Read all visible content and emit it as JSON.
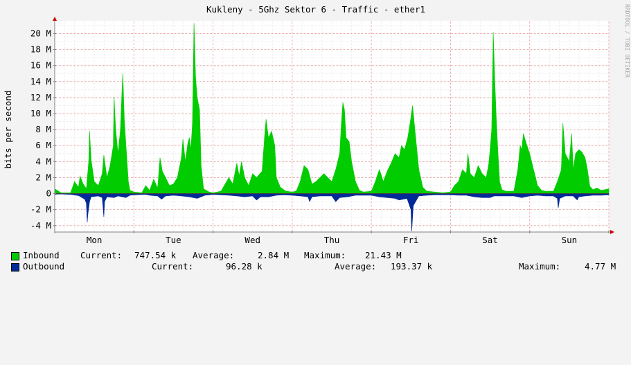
{
  "chart_data": {
    "type": "area",
    "title": "Kukleny - 5Ghz Sektor 6 - Traffic - ether1",
    "ylabel": "bits per second",
    "xlabel": "",
    "watermark": "RRDTOOL / TOBI OETIKER",
    "ylim": [
      -4800000,
      21600000
    ],
    "y_ticks": [
      {
        "value": 20000000,
        "label": "20 M"
      },
      {
        "value": 18000000,
        "label": "18 M"
      },
      {
        "value": 16000000,
        "label": "16 M"
      },
      {
        "value": 14000000,
        "label": "14 M"
      },
      {
        "value": 12000000,
        "label": "12 M"
      },
      {
        "value": 10000000,
        "label": "10 M"
      },
      {
        "value": 8000000,
        "label": "8 M"
      },
      {
        "value": 6000000,
        "label": "6 M"
      },
      {
        "value": 4000000,
        "label": "4 M"
      },
      {
        "value": 2000000,
        "label": "2 M"
      },
      {
        "value": 0,
        "label": "0"
      },
      {
        "value": -2000000,
        "label": "-2 M"
      },
      {
        "value": -4000000,
        "label": "-4 M"
      }
    ],
    "x_range_days": [
      0,
      7
    ],
    "x_ticks": [
      {
        "day": 0.5,
        "label": "Mon"
      },
      {
        "day": 1.5,
        "label": "Tue"
      },
      {
        "day": 2.5,
        "label": "Wed"
      },
      {
        "day": 3.5,
        "label": "Thu"
      },
      {
        "day": 4.5,
        "label": "Fri"
      },
      {
        "day": 5.5,
        "label": "Sat"
      },
      {
        "day": 6.5,
        "label": "Sun"
      }
    ],
    "grid": true,
    "legend_position": "bottom",
    "series": [
      {
        "name": "Inbound",
        "color": "#00cc00",
        "points": [
          [
            0.0,
            0.6
          ],
          [
            0.05,
            0.3
          ],
          [
            0.08,
            0.1
          ],
          [
            0.2,
            0.1
          ],
          [
            0.25,
            1.5
          ],
          [
            0.3,
            0.8
          ],
          [
            0.32,
            2.2
          ],
          [
            0.36,
            1.2
          ],
          [
            0.4,
            0.6
          ],
          [
            0.43,
            4.0
          ],
          [
            0.44,
            7.8
          ],
          [
            0.46,
            4.2
          ],
          [
            0.5,
            1.5
          ],
          [
            0.55,
            1.0
          ],
          [
            0.6,
            2.5
          ],
          [
            0.62,
            4.8
          ],
          [
            0.66,
            2.0
          ],
          [
            0.7,
            3.5
          ],
          [
            0.74,
            6.0
          ],
          [
            0.75,
            12.1
          ],
          [
            0.77,
            8.0
          ],
          [
            0.8,
            5.0
          ],
          [
            0.83,
            8.0
          ],
          [
            0.85,
            12.8
          ],
          [
            0.86,
            15.0
          ],
          [
            0.88,
            9.0
          ],
          [
            0.9,
            6.0
          ],
          [
            0.93,
            1.5
          ],
          [
            0.95,
            0.4
          ],
          [
            1.0,
            0.2
          ],
          [
            1.1,
            0.1
          ],
          [
            1.15,
            1.0
          ],
          [
            1.2,
            0.4
          ],
          [
            1.25,
            1.8
          ],
          [
            1.3,
            0.7
          ],
          [
            1.33,
            4.5
          ],
          [
            1.36,
            2.8
          ],
          [
            1.4,
            2.0
          ],
          [
            1.45,
            1.0
          ],
          [
            1.5,
            1.2
          ],
          [
            1.55,
            2.0
          ],
          [
            1.6,
            4.5
          ],
          [
            1.62,
            6.8
          ],
          [
            1.65,
            4.0
          ],
          [
            1.68,
            6.2
          ],
          [
            1.7,
            7.0
          ],
          [
            1.72,
            5.5
          ],
          [
            1.74,
            8.8
          ],
          [
            1.76,
            21.3
          ],
          [
            1.78,
            14.5
          ],
          [
            1.8,
            12.0
          ],
          [
            1.83,
            10.5
          ],
          [
            1.85,
            3.5
          ],
          [
            1.88,
            0.6
          ],
          [
            1.95,
            0.2
          ],
          [
            2.0,
            0.1
          ],
          [
            2.1,
            0.3
          ],
          [
            2.2,
            2.0
          ],
          [
            2.25,
            1.2
          ],
          [
            2.3,
            3.8
          ],
          [
            2.33,
            2.2
          ],
          [
            2.36,
            4.0
          ],
          [
            2.4,
            2.0
          ],
          [
            2.45,
            1.0
          ],
          [
            2.5,
            2.5
          ],
          [
            2.55,
            2.0
          ],
          [
            2.62,
            2.8
          ],
          [
            2.65,
            7.0
          ],
          [
            2.67,
            9.3
          ],
          [
            2.7,
            7.0
          ],
          [
            2.74,
            7.8
          ],
          [
            2.78,
            6.0
          ],
          [
            2.8,
            2.0
          ],
          [
            2.85,
            0.8
          ],
          [
            2.92,
            0.3
          ],
          [
            3.0,
            0.2
          ],
          [
            3.05,
            0.3
          ],
          [
            3.1,
            1.5
          ],
          [
            3.15,
            3.5
          ],
          [
            3.2,
            3.0
          ],
          [
            3.25,
            1.2
          ],
          [
            3.3,
            1.5
          ],
          [
            3.35,
            2.0
          ],
          [
            3.4,
            2.5
          ],
          [
            3.5,
            1.5
          ],
          [
            3.55,
            3.0
          ],
          [
            3.6,
            5.0
          ],
          [
            3.62,
            8.5
          ],
          [
            3.64,
            11.4
          ],
          [
            3.66,
            10.5
          ],
          [
            3.68,
            7.0
          ],
          [
            3.72,
            6.5
          ],
          [
            3.75,
            4.0
          ],
          [
            3.8,
            1.5
          ],
          [
            3.85,
            0.4
          ],
          [
            3.9,
            0.2
          ],
          [
            4.0,
            0.3
          ],
          [
            4.05,
            1.5
          ],
          [
            4.1,
            3.0
          ],
          [
            4.12,
            2.5
          ],
          [
            4.15,
            1.5
          ],
          [
            4.2,
            2.8
          ],
          [
            4.25,
            3.8
          ],
          [
            4.3,
            5.0
          ],
          [
            4.35,
            4.5
          ],
          [
            4.38,
            6.0
          ],
          [
            4.42,
            5.5
          ],
          [
            4.46,
            7.0
          ],
          [
            4.5,
            9.5
          ],
          [
            4.52,
            11.0
          ],
          [
            4.55,
            8.0
          ],
          [
            4.58,
            5.0
          ],
          [
            4.6,
            3.0
          ],
          [
            4.65,
            0.8
          ],
          [
            4.7,
            0.3
          ],
          [
            4.8,
            0.2
          ],
          [
            4.9,
            0.1
          ],
          [
            5.0,
            0.2
          ],
          [
            5.05,
            1.0
          ],
          [
            5.1,
            1.5
          ],
          [
            5.15,
            3.0
          ],
          [
            5.2,
            2.5
          ],
          [
            5.22,
            5.0
          ],
          [
            5.25,
            2.5
          ],
          [
            5.3,
            2.0
          ],
          [
            5.35,
            3.5
          ],
          [
            5.4,
            2.5
          ],
          [
            5.45,
            2.0
          ],
          [
            5.48,
            3.5
          ],
          [
            5.5,
            5.5
          ],
          [
            5.52,
            8.0
          ],
          [
            5.54,
            20.2
          ],
          [
            5.56,
            14.0
          ],
          [
            5.58,
            9.0
          ],
          [
            5.6,
            5.0
          ],
          [
            5.62,
            1.5
          ],
          [
            5.65,
            0.5
          ],
          [
            5.7,
            0.3
          ],
          [
            5.8,
            0.3
          ],
          [
            5.85,
            3.0
          ],
          [
            5.88,
            6.0
          ],
          [
            5.9,
            5.5
          ],
          [
            5.92,
            7.5
          ],
          [
            5.95,
            6.5
          ],
          [
            6.0,
            5.0
          ],
          [
            6.05,
            3.0
          ],
          [
            6.1,
            1.0
          ],
          [
            6.15,
            0.4
          ],
          [
            6.2,
            0.3
          ],
          [
            6.3,
            0.3
          ],
          [
            6.35,
            1.5
          ],
          [
            6.4,
            3.0
          ],
          [
            6.42,
            8.8
          ],
          [
            6.45,
            5.0
          ],
          [
            6.5,
            4.0
          ],
          [
            6.53,
            7.5
          ],
          [
            6.55,
            3.0
          ],
          [
            6.58,
            5.0
          ],
          [
            6.62,
            5.5
          ],
          [
            6.66,
            5.2
          ],
          [
            6.7,
            4.5
          ],
          [
            6.73,
            3.0
          ],
          [
            6.76,
            0.9
          ],
          [
            6.8,
            0.5
          ],
          [
            6.85,
            0.7
          ],
          [
            6.9,
            0.4
          ],
          [
            7.0,
            0.6
          ]
        ]
      },
      {
        "name": "Outbound",
        "color": "#002a97",
        "points": [
          [
            0.0,
            0.1
          ],
          [
            0.05,
            0.05
          ],
          [
            0.2,
            0.1
          ],
          [
            0.3,
            0.25
          ],
          [
            0.38,
            0.7
          ],
          [
            0.4,
            1.2
          ],
          [
            0.41,
            3.6
          ],
          [
            0.42,
            2.5
          ],
          [
            0.44,
            1.0
          ],
          [
            0.46,
            0.4
          ],
          [
            0.55,
            0.3
          ],
          [
            0.6,
            0.5
          ],
          [
            0.62,
            2.9
          ],
          [
            0.63,
            1.0
          ],
          [
            0.66,
            0.4
          ],
          [
            0.75,
            0.5
          ],
          [
            0.8,
            0.3
          ],
          [
            0.9,
            0.5
          ],
          [
            0.95,
            0.2
          ],
          [
            1.0,
            0.15
          ],
          [
            1.15,
            0.1
          ],
          [
            1.2,
            0.2
          ],
          [
            1.3,
            0.3
          ],
          [
            1.35,
            0.7
          ],
          [
            1.4,
            0.3
          ],
          [
            1.5,
            0.2
          ],
          [
            1.6,
            0.3
          ],
          [
            1.7,
            0.4
          ],
          [
            1.8,
            0.6
          ],
          [
            1.9,
            0.2
          ],
          [
            2.0,
            0.1
          ],
          [
            2.2,
            0.2
          ],
          [
            2.3,
            0.3
          ],
          [
            2.4,
            0.4
          ],
          [
            2.5,
            0.3
          ],
          [
            2.55,
            0.8
          ],
          [
            2.6,
            0.4
          ],
          [
            2.7,
            0.4
          ],
          [
            2.8,
            0.2
          ],
          [
            2.9,
            0.15
          ],
          [
            3.0,
            0.2
          ],
          [
            3.1,
            0.3
          ],
          [
            3.2,
            0.4
          ],
          [
            3.22,
            1.0
          ],
          [
            3.25,
            0.4
          ],
          [
            3.35,
            0.3
          ],
          [
            3.5,
            0.3
          ],
          [
            3.55,
            1.0
          ],
          [
            3.6,
            0.5
          ],
          [
            3.7,
            0.4
          ],
          [
            3.8,
            0.2
          ],
          [
            3.9,
            0.2
          ],
          [
            4.0,
            0.2
          ],
          [
            4.1,
            0.4
          ],
          [
            4.2,
            0.5
          ],
          [
            4.3,
            0.6
          ],
          [
            4.35,
            0.8
          ],
          [
            4.45,
            0.6
          ],
          [
            4.5,
            2.0
          ],
          [
            4.51,
            4.7
          ],
          [
            4.53,
            1.5
          ],
          [
            4.6,
            0.3
          ],
          [
            4.7,
            0.2
          ],
          [
            4.8,
            0.15
          ],
          [
            5.0,
            0.15
          ],
          [
            5.1,
            0.2
          ],
          [
            5.2,
            0.2
          ],
          [
            5.3,
            0.4
          ],
          [
            5.4,
            0.5
          ],
          [
            5.5,
            0.5
          ],
          [
            5.55,
            0.3
          ],
          [
            5.7,
            0.3
          ],
          [
            5.8,
            0.3
          ],
          [
            5.9,
            0.5
          ],
          [
            6.0,
            0.3
          ],
          [
            6.1,
            0.2
          ],
          [
            6.2,
            0.3
          ],
          [
            6.3,
            0.3
          ],
          [
            6.35,
            0.6
          ],
          [
            6.36,
            1.8
          ],
          [
            6.38,
            0.6
          ],
          [
            6.45,
            0.3
          ],
          [
            6.55,
            0.3
          ],
          [
            6.6,
            0.8
          ],
          [
            6.62,
            0.4
          ],
          [
            6.7,
            0.3
          ],
          [
            6.8,
            0.2
          ],
          [
            6.9,
            0.2
          ],
          [
            7.0,
            0.15
          ]
        ],
        "points_unit": "M, drawn below zero"
      }
    ]
  },
  "legend": {
    "inbound": {
      "label": "Inbound",
      "current_label": "Current:",
      "current": "747.54 k",
      "average_label": "Average:",
      "average": "2.84 M",
      "maximum_label": "Maximum:",
      "maximum": "21.43 M"
    },
    "outbound": {
      "label": "Outbound",
      "current_label": "Current:",
      "current": "96.28 k",
      "average_label": "Average:",
      "average": "193.37 k",
      "maximum_label": "Maximum:",
      "maximum": "4.77 M"
    }
  }
}
